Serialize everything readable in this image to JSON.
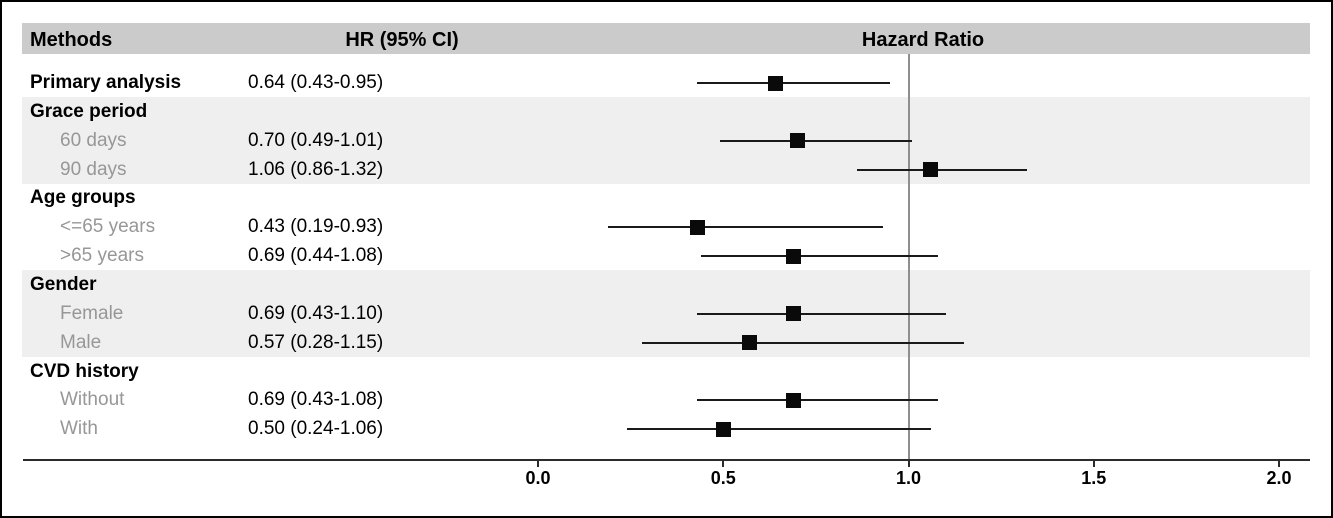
{
  "header": {
    "methods": "Methods",
    "hr_ci": "HR (95% CI)",
    "hazard_ratio": "Hazard Ratio"
  },
  "colors": {
    "header_band": "#cbcbcb",
    "row_band": "#efefef",
    "sub_label": "#979797",
    "reference_line": "#8f8f8f",
    "marker": "#0a0a0a",
    "ci_line": "#1a1a1a"
  },
  "rows": [
    {
      "label": "Primary analysis",
      "level": "main",
      "hr_text": "0.64 (0.43-0.95)",
      "hr": 0.64,
      "lo": 0.43,
      "hi": 0.95
    },
    {
      "label": "Grace period",
      "level": "group",
      "hr_text": "",
      "hr": null,
      "lo": null,
      "hi": null
    },
    {
      "label": "60 days",
      "level": "sub",
      "hr_text": "0.70 (0.49-1.01)",
      "hr": 0.7,
      "lo": 0.49,
      "hi": 1.01
    },
    {
      "label": "90 days",
      "level": "sub",
      "hr_text": "1.06 (0.86-1.32)",
      "hr": 1.06,
      "lo": 0.86,
      "hi": 1.32
    },
    {
      "label": "Age groups",
      "level": "group",
      "hr_text": "",
      "hr": null,
      "lo": null,
      "hi": null
    },
    {
      "label": "<=65 years",
      "level": "sub",
      "hr_text": "0.43 (0.19-0.93)",
      "hr": 0.43,
      "lo": 0.19,
      "hi": 0.93
    },
    {
      "label": ">65 years",
      "level": "sub",
      "hr_text": "0.69 (0.44-1.08)",
      "hr": 0.69,
      "lo": 0.44,
      "hi": 1.08
    },
    {
      "label": "Gender",
      "level": "group",
      "hr_text": "",
      "hr": null,
      "lo": null,
      "hi": null
    },
    {
      "label": "Female",
      "level": "sub",
      "hr_text": "0.69 (0.43-1.10)",
      "hr": 0.69,
      "lo": 0.43,
      "hi": 1.1
    },
    {
      "label": "Male",
      "level": "sub",
      "hr_text": "0.57 (0.28-1.15)",
      "hr": 0.57,
      "lo": 0.28,
      "hi": 1.15
    },
    {
      "label": "CVD history",
      "level": "group",
      "hr_text": "",
      "hr": null,
      "lo": null,
      "hi": null
    },
    {
      "label": "Without",
      "level": "sub",
      "hr_text": "0.69 (0.43-1.08)",
      "hr": 0.69,
      "lo": 0.43,
      "hi": 1.08
    },
    {
      "label": "With",
      "level": "sub",
      "hr_text": "0.50 (0.24-1.06)",
      "hr": 0.5,
      "lo": 0.24,
      "hi": 1.06
    }
  ],
  "axis": {
    "tick_labels": [
      "0.0",
      "0.5",
      "1.0",
      "1.5",
      "2.0"
    ],
    "tick_values": [
      0.0,
      0.5,
      1.0,
      1.5,
      2.0
    ],
    "reference_line": 1.0
  },
  "chart_data": {
    "type": "scatter",
    "title": "Hazard Ratio",
    "xlabel": "",
    "ylabel": "",
    "xlim": [
      -0.4,
      2.1
    ],
    "x_ticks": [
      0.0,
      0.5,
      1.0,
      1.5,
      2.0
    ],
    "reference_line_x": 1.0,
    "grid": false,
    "legend": "none",
    "marker_shape": "square",
    "error_bar_orientation": "horizontal",
    "points": [
      {
        "group": "Primary analysis",
        "subgroup": null,
        "hr": 0.64,
        "ci_low": 0.43,
        "ci_high": 0.95,
        "label_text": "0.64 (0.43-0.95)"
      },
      {
        "group": "Grace period",
        "subgroup": "60 days",
        "hr": 0.7,
        "ci_low": 0.49,
        "ci_high": 1.01,
        "label_text": "0.70 (0.49-1.01)"
      },
      {
        "group": "Grace period",
        "subgroup": "90 days",
        "hr": 1.06,
        "ci_low": 0.86,
        "ci_high": 1.32,
        "label_text": "1.06 (0.86-1.32)"
      },
      {
        "group": "Age groups",
        "subgroup": "<=65 years",
        "hr": 0.43,
        "ci_low": 0.19,
        "ci_high": 0.93,
        "label_text": "0.43 (0.19-0.93)"
      },
      {
        "group": "Age groups",
        "subgroup": ">65 years",
        "hr": 0.69,
        "ci_low": 0.44,
        "ci_high": 1.08,
        "label_text": "0.69 (0.44-1.08)"
      },
      {
        "group": "Gender",
        "subgroup": "Female",
        "hr": 0.69,
        "ci_low": 0.43,
        "ci_high": 1.1,
        "label_text": "0.69 (0.43-1.10)"
      },
      {
        "group": "Gender",
        "subgroup": "Male",
        "hr": 0.57,
        "ci_low": 0.28,
        "ci_high": 1.15,
        "label_text": "0.57 (0.28-1.15)"
      },
      {
        "group": "CVD history",
        "subgroup": "Without",
        "hr": 0.69,
        "ci_low": 0.43,
        "ci_high": 1.08,
        "label_text": "0.69 (0.43-1.08)"
      },
      {
        "group": "CVD history",
        "subgroup": "With",
        "hr": 0.5,
        "ci_low": 0.24,
        "ci_high": 1.06,
        "label_text": "0.50 (0.24-1.06)"
      }
    ]
  }
}
